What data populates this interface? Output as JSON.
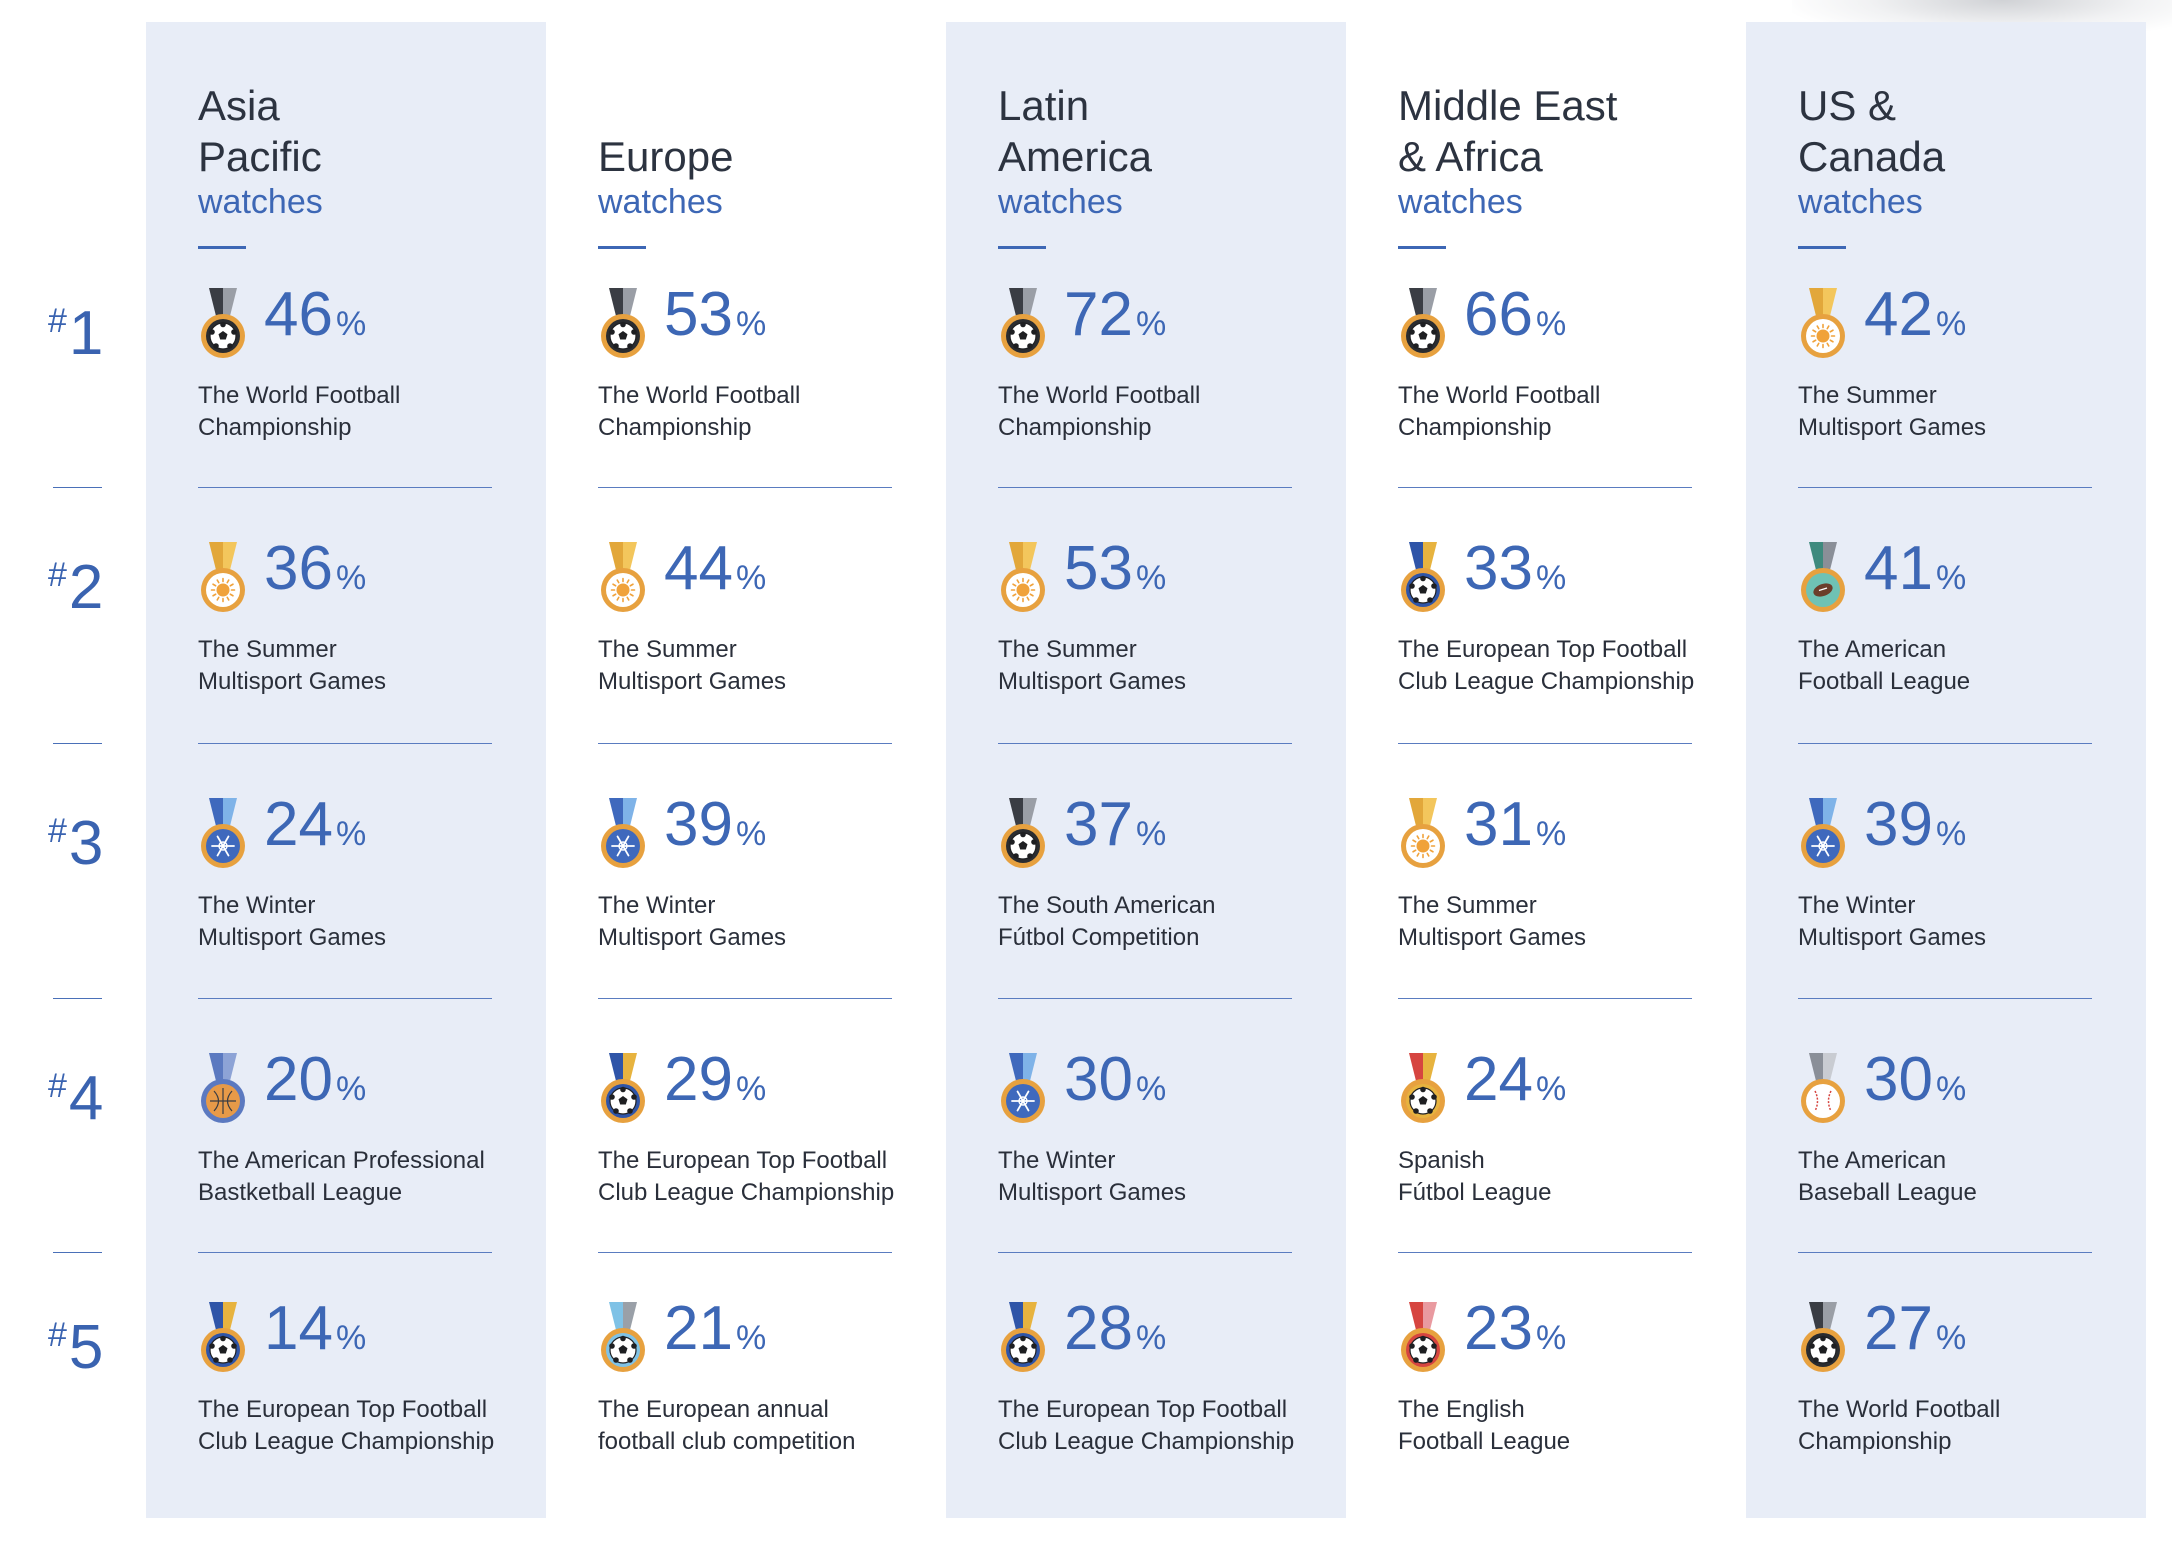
{
  "chart_data": {
    "type": "table",
    "ranks": [
      "1",
      "2",
      "3",
      "4",
      "5"
    ],
    "columns": [
      {
        "region": [
          "Asia",
          "Pacific"
        ],
        "label": "watches",
        "entries": [
          {
            "value": 46,
            "event": [
              "The World Football",
              "Championship"
            ],
            "medal": "black-soccer-medal"
          },
          {
            "value": 36,
            "event": [
              "The Summer",
              "Multisport Games"
            ],
            "medal": "gold-sun-medal"
          },
          {
            "value": 24,
            "event": [
              "The Winter",
              "Multisport Games"
            ],
            "medal": "blue-snowflake-medal"
          },
          {
            "value": 20,
            "event": [
              "The American Professional",
              "Bastketball League"
            ],
            "medal": "basketball-medal"
          },
          {
            "value": 14,
            "event": [
              "The European Top Football",
              "Club League Championship"
            ],
            "medal": "blue-soccer-medal"
          }
        ]
      },
      {
        "region": [
          "Europe"
        ],
        "label": "watches",
        "entries": [
          {
            "value": 53,
            "event": [
              "The World Football",
              "Championship"
            ],
            "medal": "black-soccer-medal"
          },
          {
            "value": 44,
            "event": [
              "The Summer",
              "Multisport Games"
            ],
            "medal": "gold-sun-medal"
          },
          {
            "value": 39,
            "event": [
              "The Winter",
              "Multisport Games"
            ],
            "medal": "blue-snowflake-medal"
          },
          {
            "value": 29,
            "event": [
              "The European Top Football",
              "Club League Championship"
            ],
            "medal": "blue-soccer-medal"
          },
          {
            "value": 21,
            "event": [
              "The European annual",
              "football club competition"
            ],
            "medal": "light-blue-soccer-medal"
          }
        ]
      },
      {
        "region": [
          "Latin",
          "America"
        ],
        "label": "watches",
        "entries": [
          {
            "value": 72,
            "event": [
              "The World Football",
              "Championship"
            ],
            "medal": "black-soccer-medal"
          },
          {
            "value": 53,
            "event": [
              "The Summer",
              "Multisport Games"
            ],
            "medal": "gold-sun-medal"
          },
          {
            "value": 37,
            "event": [
              "The South American",
              "Fútbol Competition"
            ],
            "medal": "black-soccer-medal"
          },
          {
            "value": 30,
            "event": [
              "The Winter",
              "Multisport Games"
            ],
            "medal": "blue-snowflake-medal"
          },
          {
            "value": 28,
            "event": [
              "The European Top Football",
              "Club League Championship"
            ],
            "medal": "blue-soccer-medal"
          }
        ]
      },
      {
        "region": [
          "Middle East",
          "& Africa"
        ],
        "label": "watches",
        "entries": [
          {
            "value": 66,
            "event": [
              "The World Football",
              "Championship"
            ],
            "medal": "black-soccer-medal"
          },
          {
            "value": 33,
            "event": [
              "The European Top Football",
              "Club League Championship"
            ],
            "medal": "blue-soccer-medal"
          },
          {
            "value": 31,
            "event": [
              "The Summer",
              "Multisport Games"
            ],
            "medal": "gold-sun-medal"
          },
          {
            "value": 24,
            "event": [
              "Spanish",
              "Fútbol League"
            ],
            "medal": "red-gold-soccer-medal"
          },
          {
            "value": 23,
            "event": [
              "The English",
              "Football League"
            ],
            "medal": "red-soccer-medal"
          }
        ]
      },
      {
        "region": [
          "US &",
          "Canada"
        ],
        "label": "watches",
        "entries": [
          {
            "value": 42,
            "event": [
              "The Summer",
              "Multisport Games"
            ],
            "medal": "gold-sun-medal"
          },
          {
            "value": 41,
            "event": [
              "The American",
              "Football League"
            ],
            "medal": "teal-football-medal"
          },
          {
            "value": 39,
            "event": [
              "The Winter",
              "Multisport Games"
            ],
            "medal": "blue-snowflake-medal"
          },
          {
            "value": 30,
            "event": [
              "The American",
              "Baseball League"
            ],
            "medal": "baseball-medal"
          },
          {
            "value": 27,
            "event": [
              "The World Football",
              "Championship"
            ],
            "medal": "black-soccer-medal"
          }
        ]
      }
    ]
  },
  "medal_colors": {
    "black-soccer-medal": {
      "ribbon_l": "#3a3d44",
      "ribbon_r": "#9a9ea6",
      "ring": "#e7a13f",
      "disc": "#2a2c30",
      "icon": "soccer"
    },
    "gold-sun-medal": {
      "ribbon_l": "#e2a73a",
      "ribbon_r": "#f3c65c",
      "ring": "#e7a13f",
      "disc": "#ffffff",
      "icon": "sun"
    },
    "blue-snowflake-medal": {
      "ribbon_l": "#3f69bd",
      "ribbon_r": "#7fb3e8",
      "ring": "#e7a13f",
      "disc": "#3f69bd",
      "icon": "snowflake"
    },
    "basketball-medal": {
      "ribbon_l": "#5b79c0",
      "ribbon_r": "#8da3d6",
      "ring": "#5b79c0",
      "disc": "#e79a48",
      "icon": "basketball"
    },
    "blue-soccer-medal": {
      "ribbon_l": "#2f55a8",
      "ribbon_r": "#e7b33f",
      "ring": "#e7a13f",
      "disc": "#2f55a8",
      "icon": "soccer"
    },
    "light-blue-soccer-medal": {
      "ribbon_l": "#7fc2e6",
      "ribbon_r": "#9aa0a8",
      "ring": "#e7a13f",
      "disc": "#7fc2e6",
      "icon": "soccer"
    },
    "red-gold-soccer-medal": {
      "ribbon_l": "#d64540",
      "ribbon_r": "#e7b33f",
      "ring": "#e7a13f",
      "disc": "#e7b33f",
      "icon": "soccer"
    },
    "red-soccer-medal": {
      "ribbon_l": "#d64540",
      "ribbon_r": "#e99aa0",
      "ring": "#e7a13f",
      "disc": "#d64540",
      "icon": "soccer"
    },
    "teal-football-medal": {
      "ribbon_l": "#3e8a7e",
      "ribbon_r": "#8a8f98",
      "ring": "#e7a13f",
      "disc": "#6fc2b4",
      "icon": "football"
    },
    "baseball-medal": {
      "ribbon_l": "#8a8f98",
      "ribbon_r": "#c9ccd2",
      "ring": "#e7a13f",
      "disc": "#ffffff",
      "icon": "baseball"
    }
  },
  "colors": {
    "accent": "#3d67b5",
    "band": "#e8edf7",
    "text": "#2a2f3a"
  }
}
